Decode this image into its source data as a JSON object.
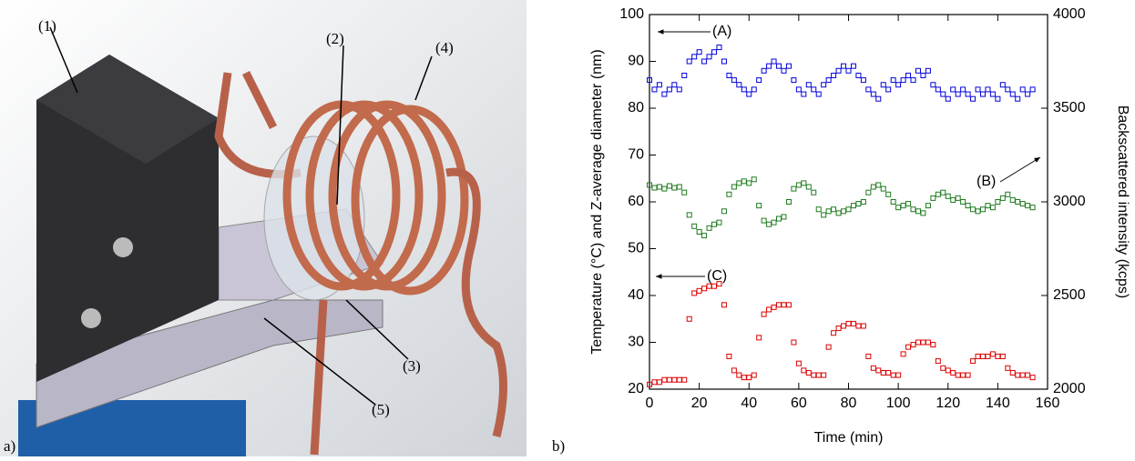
{
  "figure": {
    "panel_a": {
      "labels": [
        "(1)",
        "(2)",
        "(3)",
        "(4)",
        "(5)"
      ],
      "tag": "a)"
    },
    "panel_b_tag": "b)"
  },
  "chart_data": {
    "type": "scatter",
    "xlabel": "Time (min)",
    "ylabel": "Temperature (°C) and Z-average diameter (nm)",
    "y2label": "Backscattered intensity (kcps)",
    "annotations": [
      "(A)",
      "(B)",
      "(C)"
    ],
    "xlim": [
      0,
      160
    ],
    "xticks": [
      0,
      20,
      40,
      60,
      80,
      100,
      120,
      140,
      160
    ],
    "ylim": [
      20,
      100
    ],
    "yticks": [
      20,
      30,
      40,
      50,
      60,
      70,
      80,
      90,
      100
    ],
    "y2lim": [
      2000,
      4000
    ],
    "y2ticks": [
      2000,
      2500,
      3000,
      3500,
      4000
    ],
    "marker": "open-square",
    "x": [
      0,
      2,
      4,
      6,
      8,
      10,
      12,
      14,
      16,
      18,
      20,
      22,
      24,
      26,
      28,
      30,
      32,
      34,
      36,
      38,
      40,
      42,
      44,
      46,
      48,
      50,
      52,
      54,
      56,
      58,
      60,
      62,
      64,
      66,
      68,
      70,
      72,
      74,
      76,
      78,
      80,
      82,
      84,
      86,
      88,
      90,
      92,
      94,
      96,
      98,
      100,
      102,
      104,
      106,
      108,
      110,
      112,
      114,
      116,
      118,
      120,
      122,
      124,
      126,
      128,
      130,
      132,
      134,
      136,
      138,
      140,
      142,
      144,
      146,
      148,
      150,
      152,
      154
    ],
    "series": [
      {
        "color": "#0000dd",
        "axis": "y",
        "values": [
          86,
          84,
          85,
          83,
          84,
          85,
          84,
          87,
          90,
          91,
          92,
          90,
          91,
          92,
          93,
          90,
          87,
          86,
          85,
          84,
          83,
          84,
          86,
          88,
          89,
          90,
          89,
          88,
          89,
          86,
          84,
          83,
          85,
          84,
          83,
          85,
          86,
          87,
          88,
          89,
          88,
          89,
          87,
          86,
          84,
          83,
          82,
          85,
          84,
          86,
          85,
          86,
          87,
          86,
          88,
          87,
          88,
          85,
          84,
          83,
          82,
          84,
          83,
          84,
          83,
          82,
          84,
          83,
          84,
          83,
          82,
          85,
          84,
          83,
          82,
          84,
          83,
          84
        ]
      },
      {
        "color": "#1e7a1e",
        "axis": "y2",
        "values": [
          3090,
          3075,
          3080,
          3070,
          3085,
          3075,
          3080,
          3050,
          2930,
          2870,
          2840,
          2820,
          2860,
          2880,
          2890,
          2950,
          3040,
          3080,
          3100,
          3110,
          3100,
          3120,
          2980,
          2900,
          2880,
          2890,
          2910,
          2920,
          3000,
          3070,
          3090,
          3100,
          3080,
          3050,
          2960,
          2930,
          2950,
          2960,
          2940,
          2950,
          2960,
          2980,
          2990,
          3000,
          3050,
          3080,
          3090,
          3070,
          3040,
          3000,
          2970,
          2980,
          2990,
          2960,
          2950,
          2940,
          2980,
          3020,
          3040,
          3050,
          3030,
          3010,
          3020,
          3000,
          2980,
          2960,
          2950,
          2960,
          2980,
          2970,
          3000,
          3020,
          3040,
          3010,
          3000,
          2990,
          2980,
          2970
        ]
      },
      {
        "color": "#dd0000",
        "axis": "y",
        "values": [
          21,
          21.5,
          21.5,
          22,
          22,
          22,
          22,
          22,
          35,
          40.5,
          41,
          41.5,
          42,
          42,
          42.5,
          38,
          27,
          24,
          23,
          22.5,
          22.5,
          23,
          31,
          36,
          37,
          37.5,
          38,
          38,
          38,
          30,
          25.5,
          24,
          23.5,
          23,
          23,
          23,
          29,
          32,
          33,
          33.5,
          34,
          34,
          33.5,
          33.5,
          27,
          24.5,
          24,
          23.5,
          23.5,
          23,
          23,
          27.5,
          29,
          29.5,
          30,
          30,
          30,
          29.5,
          26,
          24.5,
          24,
          23.5,
          23,
          23,
          23,
          26,
          27,
          27,
          27,
          27.5,
          27,
          27,
          24.5,
          23.5,
          23,
          23,
          23,
          22.5
        ]
      }
    ]
  }
}
